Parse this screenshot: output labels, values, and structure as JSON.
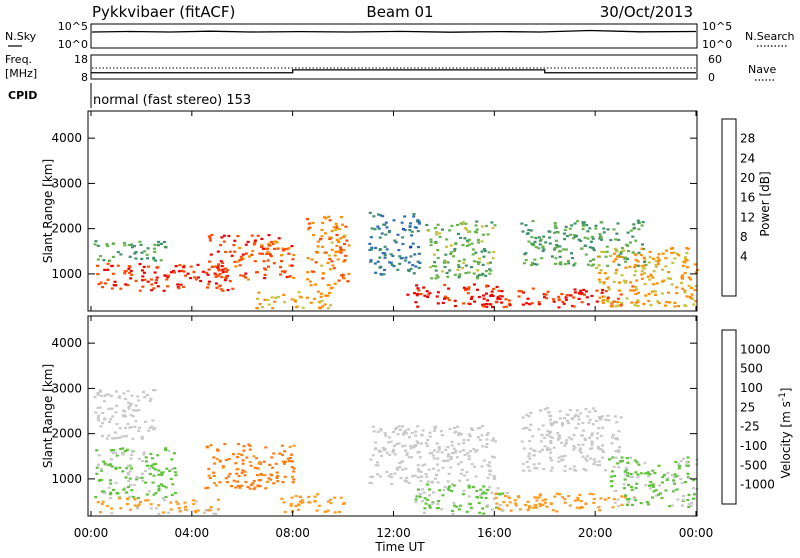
{
  "header": {
    "station": "Pykkvibaer (fitACF)",
    "beam": "Beam 01",
    "date": "30/Oct/2013"
  },
  "noise_panel": {
    "left_label": "N.Sky",
    "right_label": "N.Search",
    "left_ticks": [
      "10^5",
      "10^0"
    ],
    "right_ticks": [
      "10^5",
      "10^0"
    ]
  },
  "freq_panel": {
    "left_label_1": "Freq.",
    "left_label_2": "[MHz]",
    "right_label": "Nave",
    "left_ticks": [
      "18",
      "8"
    ],
    "right_ticks": [
      "60",
      "0"
    ],
    "freq_steps_mhz": [
      {
        "from": "00:00",
        "to": "08:00",
        "value": 10.6
      },
      {
        "from": "08:00",
        "to": "18:00",
        "value": 11.8
      },
      {
        "from": "18:00",
        "to": "24:00",
        "value": 10.6
      }
    ]
  },
  "cpid": {
    "label": "CPID",
    "text": "normal (fast stereo) 153"
  },
  "x_axis": {
    "label": "Time UT",
    "ticks": [
      "00:00",
      "04:00",
      "08:00",
      "12:00",
      "16:00",
      "20:00",
      "00:00"
    ]
  },
  "power_panel": {
    "ylabel": "Slant Range [km]",
    "yticks": [
      "4000",
      "3000",
      "2000",
      "1000"
    ],
    "colorbar_label": "Power [dB]",
    "colorbar_ticks": [
      "28",
      "24",
      "20",
      "16",
      "12",
      "8",
      "4"
    ],
    "colors": [
      "#0000ff",
      "#1d3fa8",
      "#2f6fb0",
      "#3e8f6a",
      "#66b24c",
      "#c6c23a",
      "#ff8c00",
      "#ff4a00",
      "#ee0000"
    ]
  },
  "velocity_panel": {
    "ylabel": "Slant Range [km]",
    "yticks": [
      "4000",
      "3000",
      "2000",
      "1000"
    ],
    "colorbar_label": "Velocity  [m s",
    "colorbar_label_sup": "-1",
    "colorbar_label_end": "]",
    "colorbar_ticks": [
      "1000",
      "500",
      "100",
      "25",
      "-25",
      "-100",
      "-500",
      "-1000"
    ],
    "colors": [
      "#1e3ca0",
      "#2f6fa6",
      "#347f65",
      "#5fc23b",
      "#c8c8c8",
      "#ff9a20",
      "#ff7a10",
      "#ff4000",
      "#e50000"
    ]
  },
  "chart_data": [
    {
      "type": "heatmap",
      "title": "Power [dB]",
      "xlabel": "Time UT",
      "ylabel": "Slant Range [km]",
      "xlim": [
        "00:00",
        "24:00"
      ],
      "ylim": [
        180,
        4600
      ],
      "zlim": [
        0,
        32
      ],
      "blobs": [
        {
          "t0": 0.2,
          "t1": 5.6,
          "r0": 650,
          "r1": 1250,
          "value": 28
        },
        {
          "t0": 0.1,
          "t1": 3.0,
          "r0": 1300,
          "r1": 1750,
          "value": 14
        },
        {
          "t0": 4.6,
          "t1": 8.0,
          "r0": 900,
          "r1": 1900,
          "value": 27
        },
        {
          "t0": 6.5,
          "t1": 9.5,
          "r0": 250,
          "r1": 650,
          "value": 22
        },
        {
          "t0": 8.5,
          "t1": 10.2,
          "r0": 700,
          "r1": 2300,
          "value": 24
        },
        {
          "t0": 11.0,
          "t1": 13.0,
          "r0": 1000,
          "r1": 2400,
          "value": 10
        },
        {
          "t0": 12.5,
          "t1": 16.2,
          "r0": 280,
          "r1": 800,
          "value": 29
        },
        {
          "t0": 13.2,
          "t1": 16.0,
          "r0": 900,
          "r1": 2200,
          "value": 16
        },
        {
          "t0": 16.0,
          "t1": 21.0,
          "r0": 280,
          "r1": 700,
          "value": 28
        },
        {
          "t0": 17.0,
          "t1": 22.0,
          "r0": 1200,
          "r1": 2200,
          "value": 14
        },
        {
          "t0": 20.0,
          "t1": 24.0,
          "r0": 300,
          "r1": 1600,
          "value": 22
        }
      ]
    },
    {
      "type": "heatmap",
      "title": "Velocity [m s-1]",
      "xlabel": "Time UT",
      "ylabel": "Slant Range [km]",
      "xlim": [
        "00:00",
        "24:00"
      ],
      "ylim": [
        180,
        4600
      ],
      "zlim": [
        -1000,
        1000
      ],
      "blobs": [
        {
          "t0": 0.1,
          "t1": 3.5,
          "r0": 600,
          "r1": 1700,
          "value": 150
        },
        {
          "t0": 0.2,
          "t1": 5.0,
          "r0": 250,
          "r1": 600,
          "value": -150
        },
        {
          "t0": 0.1,
          "t1": 2.5,
          "r0": 1900,
          "r1": 3000,
          "value": 0
        },
        {
          "t0": 4.5,
          "t1": 8.0,
          "r0": 800,
          "r1": 1800,
          "value": -400
        },
        {
          "t0": 7.5,
          "t1": 10.0,
          "r0": 250,
          "r1": 700,
          "value": -200
        },
        {
          "t0": 11.0,
          "t1": 16.0,
          "r0": 900,
          "r1": 2200,
          "value": 0
        },
        {
          "t0": 12.8,
          "t1": 16.5,
          "r0": 250,
          "r1": 900,
          "value": 150
        },
        {
          "t0": 16.0,
          "t1": 21.5,
          "r0": 300,
          "r1": 700,
          "value": -200
        },
        {
          "t0": 17.0,
          "t1": 21.0,
          "r0": 1200,
          "r1": 2600,
          "value": 0
        },
        {
          "t0": 20.5,
          "t1": 24.0,
          "r0": 400,
          "r1": 1500,
          "value": 150
        }
      ]
    }
  ]
}
